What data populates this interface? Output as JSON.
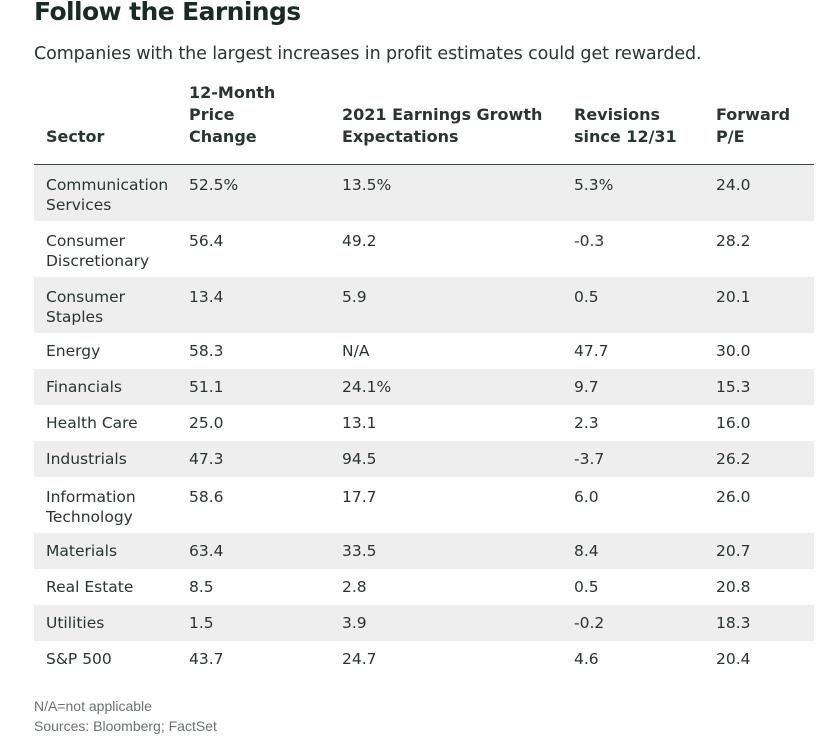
{
  "chart_data": {
    "type": "table",
    "title": "Follow the Earnings",
    "subtitle": "Companies with the largest increases in profit estimates could get rewarded.",
    "columns": [
      "Sector",
      "12-Month Price Change",
      "2021 Earnings Growth Expectations",
      "Revisions since 12/31",
      "Forward P/E"
    ],
    "header_lines": [
      [
        "Sector"
      ],
      [
        "12-Month",
        "Price",
        "Change"
      ],
      [
        "2021 Earnings Growth",
        "Expectations"
      ],
      [
        "Revisions",
        "since 12/31"
      ],
      [
        "Forward",
        "P/E"
      ]
    ],
    "rows": [
      {
        "sector_lines": [
          "Communication",
          "Services"
        ],
        "cells": [
          "52.5%",
          "13.5%",
          "5.3%",
          "24.0"
        ]
      },
      {
        "sector_lines": [
          "Consumer",
          "Discretionary"
        ],
        "cells": [
          "56.4",
          "49.2",
          "-0.3",
          "28.2"
        ]
      },
      {
        "sector_lines": [
          "Consumer",
          "Staples"
        ],
        "cells": [
          "13.4",
          "5.9",
          "0.5",
          "20.1"
        ]
      },
      {
        "sector_lines": [
          "Energy"
        ],
        "cells": [
          "58.3",
          "N/A",
          "47.7",
          "30.0"
        ]
      },
      {
        "sector_lines": [
          "Financials"
        ],
        "cells": [
          "51.1",
          "24.1%",
          "9.7",
          "15.3"
        ]
      },
      {
        "sector_lines": [
          "Health Care"
        ],
        "cells": [
          "25.0",
          "13.1",
          "2.3",
          "16.0"
        ]
      },
      {
        "sector_lines": [
          "Industrials"
        ],
        "cells": [
          "47.3",
          "94.5",
          "-3.7",
          "26.2"
        ]
      },
      {
        "sector_lines": [
          "Information",
          "Technology"
        ],
        "cells": [
          "58.6",
          "17.7",
          "6.0",
          "26.0"
        ]
      },
      {
        "sector_lines": [
          "Materials"
        ],
        "cells": [
          "63.4",
          "33.5",
          "8.4",
          "20.7"
        ]
      },
      {
        "sector_lines": [
          "Real Estate"
        ],
        "cells": [
          "8.5",
          "2.8",
          "0.5",
          "20.8"
        ]
      },
      {
        "sector_lines": [
          "Utilities"
        ],
        "cells": [
          "1.5",
          "3.9",
          "-0.2",
          "18.3"
        ]
      },
      {
        "sector_lines": [
          "S&P 500"
        ],
        "cells": [
          "43.7",
          "24.7",
          "4.6",
          "20.4"
        ]
      }
    ],
    "notes": [
      "N/A=not applicable",
      "Sources: Bloomberg; FactSet"
    ],
    "row_shading": "alternating",
    "shade_color": "#eeeeee"
  }
}
